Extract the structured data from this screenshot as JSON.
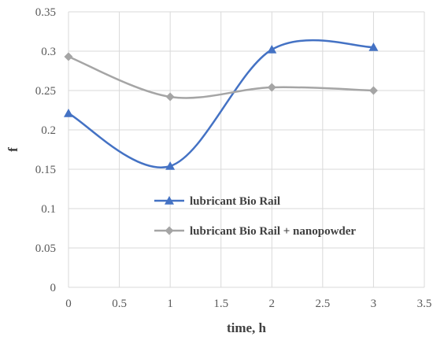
{
  "chart_data": {
    "type": "scatter",
    "title": "",
    "xlabel": "time, h",
    "ylabel": "f",
    "xlim": [
      0,
      3.5
    ],
    "ylim": [
      0,
      0.35
    ],
    "x_ticks": [
      "0",
      "0.5",
      "1",
      "1.5",
      "2",
      "2.5",
      "3",
      "3.5"
    ],
    "y_ticks": [
      "0",
      "0.05",
      "0.1",
      "0.15",
      "0.2",
      "0.25",
      "0.3",
      "0.35"
    ],
    "grid": true,
    "smoothed_lines": true,
    "legend_position": "center-right",
    "series": [
      {
        "name": "lubricant Bio Rail",
        "marker": "triangle",
        "color": "#4472C4",
        "x": [
          0,
          1,
          2,
          3
        ],
        "y": [
          0.221,
          0.154,
          0.302,
          0.305
        ]
      },
      {
        "name": "lubricant Bio Rail + nanopowder",
        "marker": "diamond",
        "color": "#A5A5A5",
        "x": [
          0,
          1,
          2,
          3
        ],
        "y": [
          0.293,
          0.242,
          0.254,
          0.25
        ]
      }
    ]
  }
}
